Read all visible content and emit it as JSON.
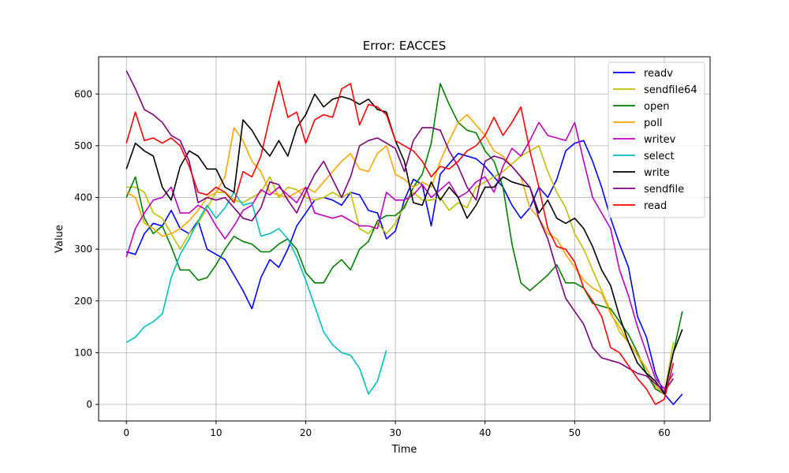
{
  "chart_data": {
    "type": "line",
    "title": "Error: EACCES",
    "xlabel": "Time",
    "ylabel": "Value",
    "xlim": [
      -3.1,
      65.1
    ],
    "ylim": [
      -32,
      672
    ],
    "xticks": [
      0,
      10,
      20,
      30,
      40,
      50,
      60
    ],
    "yticks": [
      0,
      100,
      200,
      300,
      400,
      500,
      600
    ],
    "grid": true,
    "legend_position": "upper right",
    "series": [
      {
        "name": "readv",
        "color": "#0000ff",
        "x": [
          0,
          1,
          2,
          3,
          4,
          5,
          6,
          7,
          8,
          9,
          10,
          11,
          12,
          13,
          14,
          15,
          16,
          17,
          18,
          19,
          20,
          21,
          22,
          23,
          24,
          25,
          26,
          27,
          28,
          29,
          30,
          31,
          32,
          33,
          34,
          35,
          36,
          37,
          38,
          39,
          40,
          41,
          42,
          43,
          44,
          45,
          46,
          47,
          48,
          49,
          50,
          51,
          52,
          53,
          54,
          55,
          56,
          57,
          58,
          59,
          60,
          61,
          62
        ],
        "y": [
          295,
          290,
          330,
          350,
          345,
          375,
          340,
          330,
          355,
          300,
          290,
          280,
          250,
          220,
          185,
          245,
          280,
          265,
          300,
          345,
          370,
          395,
          400,
          395,
          385,
          410,
          405,
          375,
          370,
          320,
          335,
          395,
          435,
          425,
          345,
          445,
          465,
          485,
          480,
          475,
          460,
          440,
          420,
          385,
          360,
          380,
          420,
          400,
          435,
          490,
          505,
          510,
          470,
          420,
          360,
          310,
          265,
          170,
          130,
          60,
          20,
          0,
          20
        ]
      },
      {
        "name": "sendfile64",
        "color": "#bfbf00",
        "x": [
          0,
          1,
          2,
          3,
          4,
          5,
          6,
          7,
          8,
          9,
          10,
          11,
          12,
          13,
          14,
          15,
          16,
          17,
          18,
          19,
          20,
          21,
          22,
          23,
          24,
          25,
          26,
          27,
          28,
          29,
          30,
          31,
          32,
          33,
          34,
          35,
          36,
          37,
          38,
          39,
          40,
          41,
          42,
          43,
          44,
          45,
          46,
          47,
          48,
          49,
          50,
          51,
          52,
          53,
          54,
          55,
          56,
          57,
          58,
          59,
          60,
          61
        ],
        "y": [
          420,
          420,
          410,
          370,
          360,
          330,
          300,
          330,
          350,
          380,
          410,
          410,
          395,
          390,
          400,
          410,
          440,
          400,
          420,
          415,
          400,
          395,
          400,
          410,
          400,
          410,
          340,
          330,
          350,
          330,
          350,
          385,
          410,
          395,
          395,
          400,
          375,
          390,
          380,
          420,
          430,
          440,
          450,
          465,
          480,
          490,
          500,
          450,
          410,
          380,
          330,
          300,
          260,
          220,
          180,
          140,
          120,
          95,
          60,
          30,
          20,
          120
        ]
      },
      {
        "name": "open",
        "color": "#008000",
        "x": [
          0,
          1,
          2,
          3,
          4,
          5,
          6,
          7,
          8,
          9,
          10,
          11,
          12,
          13,
          14,
          15,
          16,
          17,
          18,
          19,
          20,
          21,
          22,
          23,
          24,
          25,
          26,
          27,
          28,
          29,
          30,
          31,
          32,
          33,
          34,
          35,
          36,
          37,
          38,
          39,
          40,
          41,
          42,
          43,
          44,
          45,
          46,
          47,
          48,
          49,
          50,
          51,
          52,
          53,
          54,
          55,
          56,
          57,
          58,
          59,
          60,
          61,
          62
        ],
        "y": [
          400,
          440,
          360,
          330,
          345,
          305,
          260,
          260,
          240,
          245,
          270,
          300,
          325,
          315,
          310,
          295,
          295,
          310,
          320,
          300,
          255,
          235,
          235,
          265,
          280,
          260,
          300,
          315,
          355,
          365,
          365,
          380,
          420,
          445,
          505,
          620,
          580,
          545,
          530,
          525,
          490,
          470,
          420,
          310,
          235,
          220,
          235,
          250,
          270,
          235,
          235,
          225,
          195,
          190,
          185,
          160,
          135,
          100,
          60,
          30,
          20,
          100,
          180
        ]
      },
      {
        "name": "poll",
        "color": "#ffa500",
        "x": [
          0,
          1,
          2,
          3,
          4,
          5,
          6,
          7,
          8,
          9,
          10,
          11,
          12,
          13,
          14,
          15,
          16,
          17,
          18,
          19,
          20,
          21,
          22,
          23,
          24,
          25,
          26,
          27,
          28,
          29,
          30,
          31,
          32,
          33,
          34,
          35,
          36,
          37,
          38,
          39,
          40,
          41,
          42,
          43,
          44,
          45,
          46,
          47,
          48,
          49,
          50,
          51,
          52,
          53,
          54,
          55,
          56,
          57,
          58,
          59,
          60,
          61
        ],
        "y": [
          410,
          400,
          350,
          340,
          325,
          330,
          340,
          355,
          375,
          400,
          410,
          440,
          535,
          510,
          470,
          450,
          410,
          405,
          400,
          410,
          420,
          410,
          430,
          450,
          470,
          485,
          455,
          450,
          485,
          500,
          445,
          435,
          420,
          430,
          420,
          470,
          510,
          545,
          560,
          540,
          520,
          490,
          480,
          460,
          440,
          380,
          360,
          330,
          320,
          290,
          265,
          240,
          225,
          215,
          175,
          150,
          120,
          95,
          70,
          35,
          20,
          100
        ]
      },
      {
        "name": "writev",
        "color": "#bf00bf",
        "x": [
          0,
          1,
          2,
          3,
          4,
          5,
          6,
          7,
          8,
          9,
          10,
          11,
          12,
          13,
          14,
          15,
          16,
          17,
          18,
          19,
          20,
          21,
          22,
          23,
          24,
          25,
          26,
          27,
          28,
          29,
          30,
          31,
          32,
          33,
          34,
          35,
          36,
          37,
          38,
          39,
          40,
          41,
          42,
          43,
          44,
          45,
          46,
          47,
          48,
          49,
          50,
          51,
          52,
          53,
          54,
          55,
          56,
          57,
          58,
          59,
          60,
          61
        ],
        "y": [
          285,
          340,
          370,
          395,
          400,
          420,
          370,
          370,
          385,
          375,
          345,
          320,
          345,
          375,
          385,
          415,
          405,
          420,
          405,
          390,
          420,
          370,
          365,
          360,
          365,
          355,
          345,
          345,
          340,
          410,
          395,
          395,
          405,
          425,
          400,
          415,
          430,
          400,
          410,
          430,
          440,
          410,
          460,
          495,
          480,
          510,
          545,
          520,
          515,
          510,
          545,
          470,
          400,
          370,
          340,
          260,
          210,
          150,
          100,
          50,
          30,
          60
        ]
      },
      {
        "name": "select",
        "color": "#00bfbf",
        "x": [
          0,
          1,
          2,
          3,
          4,
          5,
          6,
          7,
          8,
          9,
          10,
          11,
          12,
          13,
          14,
          15,
          16,
          17,
          18,
          19,
          20,
          21,
          22,
          23,
          24,
          25,
          26,
          27,
          28,
          29
        ],
        "y": [
          120,
          130,
          150,
          160,
          175,
          245,
          290,
          320,
          355,
          385,
          360,
          380,
          410,
          385,
          390,
          325,
          330,
          340,
          320,
          285,
          240,
          190,
          140,
          115,
          100,
          95,
          70,
          20,
          45,
          105
        ]
      },
      {
        "name": "write",
        "color": "#000000",
        "x": [
          0,
          1,
          2,
          3,
          4,
          5,
          6,
          7,
          8,
          9,
          10,
          11,
          12,
          13,
          14,
          15,
          16,
          17,
          18,
          19,
          20,
          21,
          22,
          23,
          24,
          25,
          26,
          27,
          28,
          29,
          30,
          31,
          32,
          33,
          34,
          35,
          36,
          37,
          38,
          39,
          40,
          41,
          42,
          43,
          44,
          45,
          46,
          47,
          48,
          49,
          50,
          51,
          52,
          53,
          54,
          55,
          56,
          57,
          58,
          59,
          60,
          61,
          62
        ],
        "y": [
          455,
          505,
          490,
          480,
          420,
          395,
          460,
          490,
          480,
          455,
          455,
          420,
          410,
          550,
          530,
          500,
          480,
          510,
          480,
          535,
          560,
          600,
          575,
          590,
          595,
          590,
          580,
          590,
          570,
          565,
          510,
          470,
          390,
          385,
          430,
          395,
          420,
          400,
          360,
          385,
          420,
          420,
          440,
          430,
          425,
          420,
          370,
          395,
          360,
          350,
          360,
          340,
          305,
          260,
          230,
          170,
          120,
          80,
          60,
          45,
          20,
          100,
          145
        ]
      },
      {
        "name": "sendfile",
        "color": "#800080",
        "x": [
          0,
          1,
          2,
          3,
          4,
          5,
          6,
          7,
          8,
          9,
          10,
          11,
          12,
          13,
          14,
          15,
          16,
          17,
          18,
          19,
          20,
          21,
          22,
          23,
          24,
          25,
          26,
          27,
          28,
          29,
          30,
          31,
          32,
          33,
          34,
          35,
          36,
          37,
          38,
          39,
          40,
          41,
          42,
          43,
          44,
          45,
          46,
          47,
          48,
          49,
          50,
          51,
          52,
          53,
          54,
          55,
          56,
          57,
          58,
          59,
          60,
          61
        ],
        "y": [
          645,
          610,
          570,
          560,
          545,
          520,
          510,
          470,
          390,
          400,
          395,
          400,
          380,
          360,
          355,
          380,
          430,
          425,
          395,
          370,
          410,
          445,
          470,
          435,
          400,
          440,
          500,
          510,
          515,
          505,
          495,
          450,
          510,
          535,
          535,
          530,
          490,
          460,
          420,
          395,
          470,
          480,
          475,
          460,
          440,
          420,
          360,
          320,
          260,
          205,
          180,
          155,
          110,
          90,
          85,
          80,
          70,
          60,
          55,
          40,
          25,
          50
        ]
      },
      {
        "name": "read",
        "color": "#ff0000",
        "x": [
          0,
          1,
          2,
          3,
          4,
          5,
          6,
          7,
          8,
          9,
          10,
          11,
          12,
          13,
          14,
          15,
          16,
          17,
          18,
          19,
          20,
          21,
          22,
          23,
          24,
          25,
          26,
          27,
          28,
          29,
          30,
          31,
          32,
          33,
          34,
          35,
          36,
          37,
          38,
          39,
          40,
          41,
          42,
          43,
          44,
          45,
          46,
          47,
          48,
          49,
          50,
          51,
          52,
          53,
          54,
          55,
          56,
          57,
          58,
          59,
          60,
          61
        ],
        "y": [
          505,
          565,
          510,
          515,
          505,
          515,
          500,
          460,
          410,
          405,
          420,
          410,
          390,
          450,
          440,
          480,
          555,
          625,
          555,
          565,
          505,
          550,
          560,
          555,
          610,
          620,
          540,
          580,
          575,
          560,
          510,
          500,
          490,
          470,
          440,
          460,
          455,
          470,
          490,
          500,
          520,
          555,
          520,
          545,
          575,
          490,
          420,
          340,
          305,
          300,
          275,
          225,
          200,
          170,
          110,
          100,
          75,
          50,
          30,
          0,
          10,
          80
        ]
      }
    ]
  }
}
